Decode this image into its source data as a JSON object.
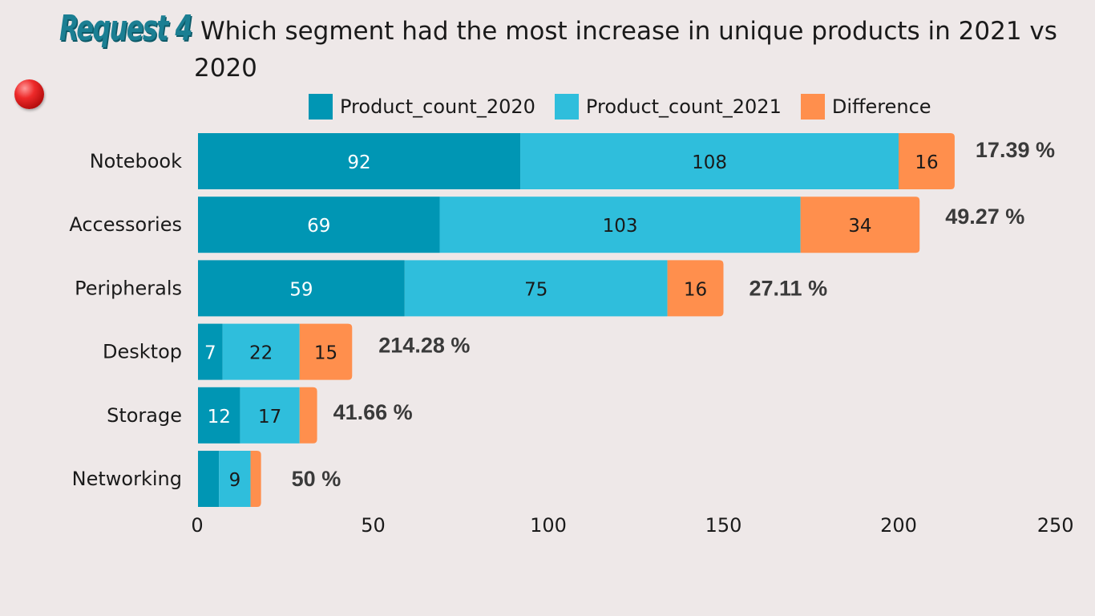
{
  "header": {
    "tag": "Request 4",
    "title": "Which segment had the most increase in unique products in 2021 vs 2020"
  },
  "chart_data": {
    "type": "bar",
    "orientation": "horizontal",
    "stacked": true,
    "categories": [
      "Notebook",
      "Accessories",
      "Peripherals",
      "Desktop",
      "Storage",
      "Networking"
    ],
    "series": [
      {
        "name": "Product_count_2020",
        "color": "#0096B4",
        "values": [
          92,
          69,
          59,
          7,
          12,
          6
        ],
        "labels": [
          "92",
          "69",
          "59",
          "7",
          "12",
          ""
        ]
      },
      {
        "name": "Product_count_2021",
        "color": "#2FBEDC",
        "values": [
          108,
          103,
          75,
          22,
          17,
          9
        ],
        "labels": [
          "108",
          "103",
          "75",
          "22",
          "17",
          "9"
        ]
      },
      {
        "name": "Difference",
        "color": "#FF8F4D",
        "values": [
          16,
          34,
          16,
          15,
          5,
          3
        ],
        "labels": [
          "16",
          "34",
          "16",
          "15",
          "",
          ""
        ]
      }
    ],
    "annotations": [
      "17.39 %",
      "49.27 %",
      "27.11 %",
      "214.28 %",
      "41.66 %",
      "50 %"
    ],
    "xticks": [
      "0",
      "50",
      "100",
      "150",
      "200",
      "250"
    ],
    "xlim": [
      0,
      250
    ],
    "legend": "top",
    "grid": false
  }
}
